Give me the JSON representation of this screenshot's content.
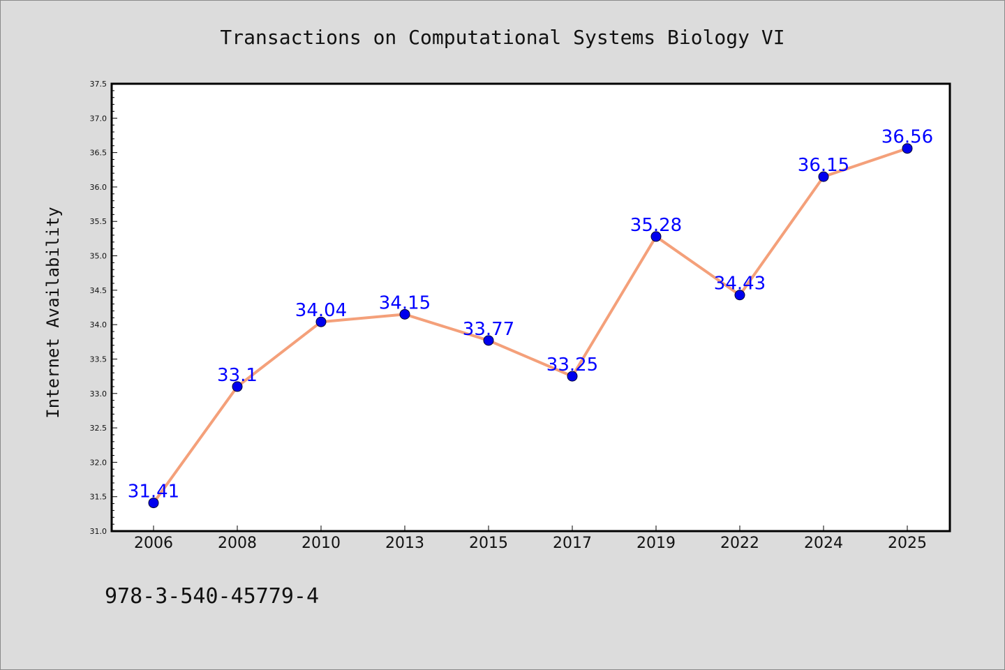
{
  "chart_data": {
    "type": "line",
    "title": "Transactions on Computational Systems Biology VI",
    "xlabel": "",
    "ylabel": "Internet Availability",
    "categories": [
      "2006",
      "2008",
      "2010",
      "2013",
      "2015",
      "2017",
      "2019",
      "2022",
      "2024",
      "2025"
    ],
    "series": [
      {
        "values": [
          31.41,
          33.1,
          34.04,
          34.15,
          33.77,
          33.25,
          35.28,
          34.43,
          36.15,
          36.56
        ],
        "labels": [
          "31.41",
          "33.1",
          "34.04",
          "34.15",
          "33.77",
          "33.25",
          "35.28",
          "34.43",
          "36.15",
          "36.56"
        ],
        "line_color": "#f4a07a",
        "marker_color": "#0000ee"
      }
    ],
    "ylim": [
      31.0,
      37.5
    ],
    "yticks": [
      "31.0",
      "31.5",
      "32.0",
      "32.5",
      "33.0",
      "33.5",
      "34.0",
      "34.5",
      "35.0",
      "35.5",
      "36.0",
      "36.5",
      "37.0",
      "37.5"
    ],
    "label_color": "#0000ff",
    "grid": false,
    "legend": "none"
  },
  "footer": {
    "isbn": "978-3-540-45779-4"
  }
}
